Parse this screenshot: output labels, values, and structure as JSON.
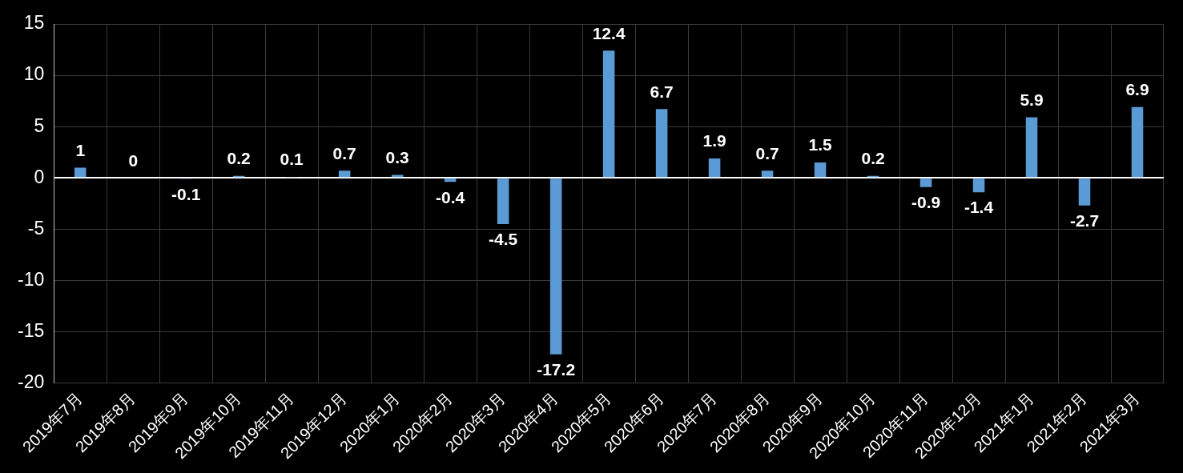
{
  "chart_data": {
    "type": "bar",
    "categories": [
      "2019年7月",
      "2019年8月",
      "2019年9月",
      "2019年10月",
      "2019年11月",
      "2019年12月",
      "2020年1月",
      "2020年2月",
      "2020年3月",
      "2020年4月",
      "2020年5月",
      "2020年6月",
      "2020年7月",
      "2020年8月",
      "2020年9月",
      "2020年10月",
      "2020年11月",
      "2020年12月",
      "2021年1月",
      "2021年2月",
      "2021年3月"
    ],
    "values": [
      1,
      0,
      -0.1,
      0.2,
      0.1,
      0.7,
      0.3,
      -0.4,
      -4.5,
      -17.2,
      12.4,
      6.7,
      1.9,
      0.7,
      1.5,
      0.2,
      -0.9,
      -1.4,
      5.9,
      -2.7,
      6.9
    ],
    "color": "#5b9bd5",
    "ylim": [
      -20,
      15
    ],
    "yticks": [
      -20,
      -15,
      -10,
      -5,
      0,
      5,
      10,
      15
    ],
    "grid": true,
    "data_labels": true
  }
}
